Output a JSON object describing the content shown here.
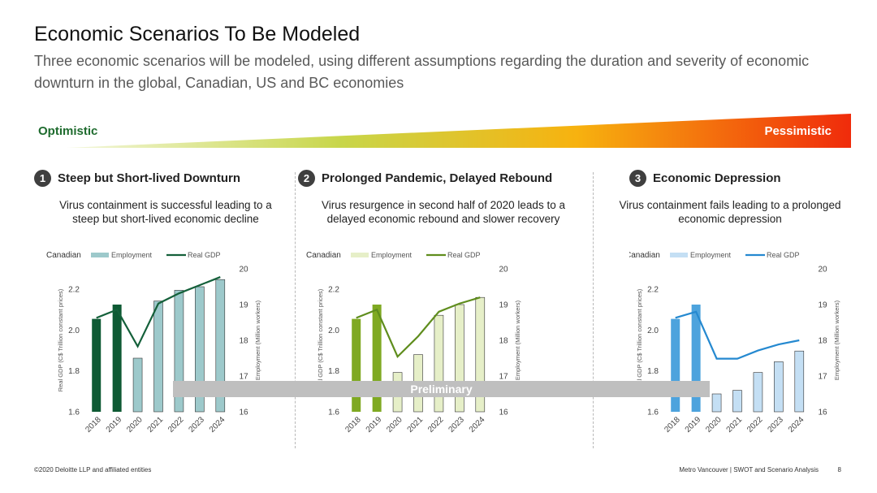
{
  "title": "Economic Scenarios To Be Modeled",
  "subtitle": "Three economic scenarios will be modeled, using different assumptions regarding the duration and severity of economic downturn in the global, Canadian, US and BC economies",
  "band": {
    "left_label": "Optimistic",
    "right_label": "Pessimistic"
  },
  "scenarios": [
    {
      "number": "1",
      "heading": "Steep but Short-lived Downturn",
      "description": "Virus containment is successful leading to a steep but short-lived economic decline"
    },
    {
      "number": "2",
      "heading": "Prolonged Pandemic, Delayed Rebound",
      "description": "Virus resurgence in second half of 2020 leads to a delayed economic rebound and slower recovery"
    },
    {
      "number": "3",
      "heading": "Economic Depression",
      "description": "Virus containment fails leading to a prolonged economic depression"
    }
  ],
  "banner": "Preliminary",
  "footer": {
    "left": "©2020 Deloitte LLP and affiliated entities",
    "right": "Metro Vancouver | SWOT and Scenario Analysis",
    "page": "8"
  },
  "chart_data": [
    {
      "type": "bar",
      "legend_title": "Canadian",
      "categories": [
        "2018",
        "2019",
        "2020",
        "2021",
        "2022",
        "2023",
        "2024"
      ],
      "series": [
        {
          "name": "Employment",
          "kind": "bar",
          "axis": "right",
          "values": [
            18.6,
            19.0,
            17.5,
            19.1,
            19.4,
            19.5,
            19.7
          ]
        },
        {
          "name": "Real GDP",
          "kind": "line",
          "axis": "left",
          "values": [
            2.06,
            2.1,
            1.92,
            2.13,
            2.18,
            2.22,
            2.26
          ]
        }
      ],
      "ylabel": "Real GDP (C$ Trillion constant prices)",
      "y2label": "Employment (Million workers)",
      "ylim": [
        1.6,
        2.3
      ],
      "y2lim": [
        16,
        20
      ],
      "yticks": [
        "1.6",
        "1.8",
        "2.0",
        "2.2"
      ],
      "y2ticks": [
        "16",
        "17",
        "18",
        "19",
        "20"
      ],
      "colors": {
        "bar_hist": "#0e5a34",
        "bar_fc": "#9dc9cb",
        "line": "#14603a"
      }
    },
    {
      "type": "bar",
      "legend_title": "Canadian",
      "categories": [
        "2018",
        "2019",
        "2020",
        "2021",
        "2022",
        "2023",
        "2024"
      ],
      "series": [
        {
          "name": "Employment",
          "kind": "bar",
          "axis": "right",
          "values": [
            18.6,
            19.0,
            17.1,
            17.6,
            18.7,
            19.0,
            19.2
          ]
        },
        {
          "name": "Real GDP",
          "kind": "line",
          "axis": "left",
          "values": [
            2.06,
            2.1,
            1.87,
            1.97,
            2.09,
            2.13,
            2.16
          ]
        }
      ],
      "ylabel": "Real GDP (C$ Trillion constant prices)",
      "y2label": "Employment (Million workers)",
      "ylim": [
        1.6,
        2.3
      ],
      "y2lim": [
        16,
        20
      ],
      "yticks": [
        "1.6",
        "1.8",
        "2.0",
        "2.2"
      ],
      "y2ticks": [
        "16",
        "17",
        "18",
        "19",
        "20"
      ],
      "colors": {
        "bar_hist": "#7fa922",
        "bar_fc": "#e6efc8",
        "line": "#5f8d1d"
      }
    },
    {
      "type": "bar",
      "legend_title": "Canadian",
      "categories": [
        "2018",
        "2019",
        "2020",
        "2021",
        "2022",
        "2023",
        "2024"
      ],
      "series": [
        {
          "name": "Employment",
          "kind": "bar",
          "axis": "right",
          "values": [
            18.6,
            19.0,
            16.5,
            16.6,
            17.1,
            17.4,
            17.7
          ]
        },
        {
          "name": "Real GDP",
          "kind": "line",
          "axis": "left",
          "values": [
            2.06,
            2.09,
            1.86,
            1.86,
            1.9,
            1.93,
            1.95
          ]
        }
      ],
      "ylabel": "Real GDP (C$ Trillion constant prices)",
      "y2label": "Employment (Million workers)",
      "ylim": [
        1.6,
        2.3
      ],
      "y2lim": [
        16,
        20
      ],
      "yticks": [
        "1.6",
        "1.8",
        "2.0",
        "2.2"
      ],
      "y2ticks": [
        "16",
        "17",
        "18",
        "19",
        "20"
      ],
      "colors": {
        "bar_hist": "#4da3dd",
        "bar_fc": "#c4dff4",
        "line": "#2589d0"
      }
    }
  ]
}
